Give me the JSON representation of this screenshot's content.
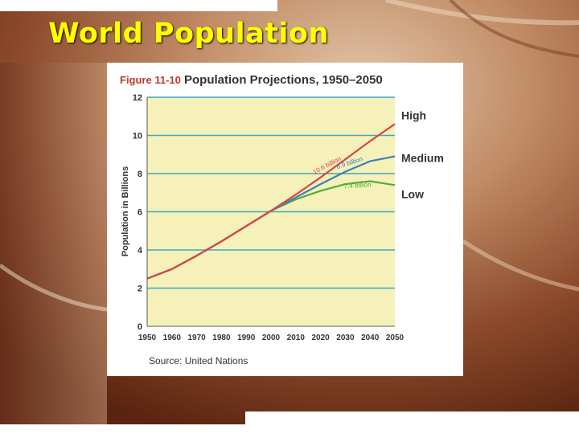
{
  "slide": {
    "title": "World Population"
  },
  "figure": {
    "number": "Figure 11-10",
    "caption": "Population Projections, 1950–2050"
  },
  "colors": {
    "title_text": "#ffff00",
    "plot_background": "#f5f1b8",
    "gridline": "#3ba7c9",
    "figure_number": "#c0392b",
    "high_series": "#d8434b",
    "medium_series": "#3d7fb8",
    "low_series": "#4fae3c"
  },
  "chart_data": {
    "type": "line",
    "title": "Population Projections, 1950–2050",
    "xlabel": "",
    "ylabel": "Population in Billions",
    "xlim": [
      1950,
      2050
    ],
    "ylim": [
      0,
      12
    ],
    "x_ticks": [
      "1950",
      "1960",
      "1970",
      "1980",
      "1990",
      "2000",
      "2010",
      "2020",
      "2030",
      "2040",
      "2050"
    ],
    "y_ticks": [
      "0",
      "2",
      "4",
      "6",
      "8",
      "10",
      "12"
    ],
    "grid": "horizontal",
    "legend": "right-end labels",
    "source": "Source: United Nations",
    "series": [
      {
        "name": "High",
        "color": "#d8434b",
        "x": [
          1950,
          1960,
          1970,
          1980,
          1990,
          2000,
          2010,
          2020,
          2030,
          2040,
          2050
        ],
        "y": [
          2.5,
          3.0,
          3.7,
          4.45,
          5.25,
          6.05,
          6.9,
          7.8,
          8.75,
          9.7,
          10.6
        ]
      },
      {
        "name": "Medium",
        "color": "#3d7fb8",
        "x": [
          1950,
          1960,
          1970,
          1980,
          1990,
          2000,
          2010,
          2020,
          2030,
          2040,
          2050
        ],
        "y": [
          2.5,
          3.0,
          3.7,
          4.45,
          5.25,
          6.05,
          6.75,
          7.45,
          8.1,
          8.65,
          8.9
        ]
      },
      {
        "name": "Low",
        "color": "#4fae3c",
        "x": [
          1950,
          1960,
          1970,
          1980,
          1990,
          2000,
          2010,
          2020,
          2030,
          2040,
          2050
        ],
        "y": [
          2.5,
          3.0,
          3.7,
          4.45,
          5.25,
          6.05,
          6.65,
          7.1,
          7.45,
          7.6,
          7.4
        ]
      }
    ],
    "annotations": [
      {
        "text": "10.6 billion",
        "series": "High"
      },
      {
        "text": "8.9 billion",
        "series": "Medium"
      },
      {
        "text": "7.4 billion",
        "series": "Low"
      }
    ]
  }
}
